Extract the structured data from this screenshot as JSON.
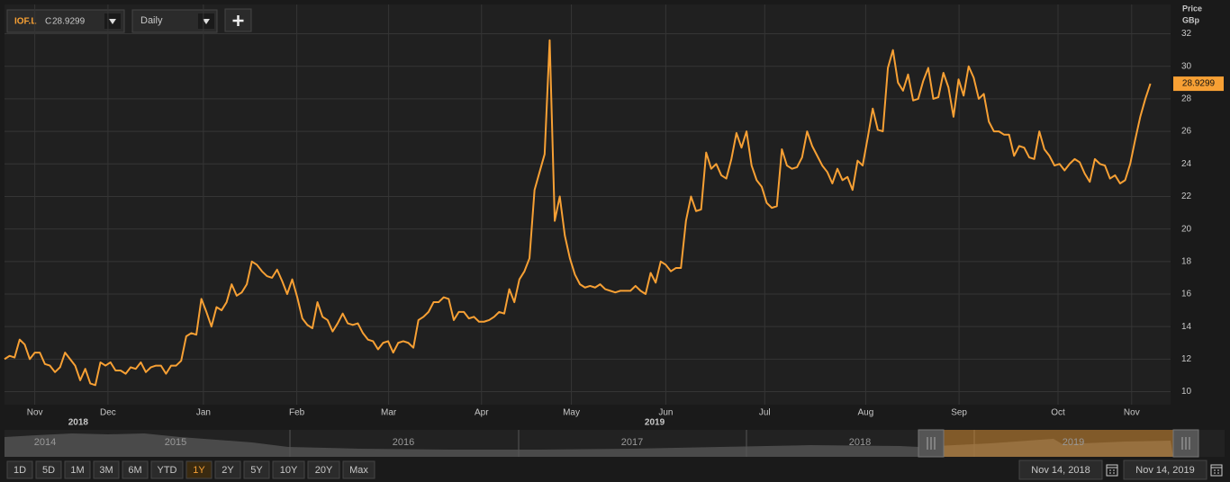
{
  "toolbar": {
    "ticker": "IOF.L",
    "close_prefix": "C",
    "interval": "Daily"
  },
  "chart_data": {
    "type": "line",
    "y_label": "Price",
    "y_unit": "GBp",
    "color": "#f7a034",
    "last_price": 28.9299,
    "values": [
      12.0,
      12.2,
      12.1,
      13.2,
      12.9,
      12.0,
      12.4,
      12.4,
      11.7,
      11.6,
      11.2,
      11.5,
      12.4,
      12.0,
      11.6,
      10.7,
      11.4,
      10.5,
      10.4,
      11.8,
      11.6,
      11.8,
      11.3,
      11.3,
      11.1,
      11.5,
      11.4,
      11.8,
      11.2,
      11.5,
      11.6,
      11.6,
      11.1,
      11.6,
      11.6,
      11.9,
      13.4,
      13.6,
      13.5,
      15.7,
      14.9,
      14.0,
      15.2,
      15.0,
      15.5,
      16.6,
      15.9,
      16.1,
      16.6,
      18.0,
      17.8,
      17.4,
      17.1,
      17.0,
      17.5,
      16.8,
      16.0,
      16.9,
      15.8,
      14.5,
      14.1,
      13.9,
      15.5,
      14.6,
      14.4,
      13.7,
      14.2,
      14.8,
      14.2,
      14.1,
      14.2,
      13.6,
      13.2,
      13.1,
      12.6,
      13.0,
      13.1,
      12.4,
      13.0,
      13.1,
      13.0,
      12.7,
      14.4,
      14.6,
      14.9,
      15.5,
      15.5,
      15.8,
      15.7,
      14.4,
      14.9,
      14.9,
      14.5,
      14.6,
      14.3,
      14.3,
      14.4,
      14.6,
      14.9,
      14.8,
      16.3,
      15.5,
      16.9,
      17.4,
      18.2,
      22.4,
      23.5,
      24.6,
      31.6,
      20.5,
      22.0,
      19.6,
      18.2,
      17.2,
      16.6,
      16.4,
      16.5,
      16.4,
      16.6,
      16.3,
      16.2,
      16.1,
      16.2,
      16.2,
      16.2,
      16.5,
      16.2,
      16.0,
      17.3,
      16.7,
      18.0,
      17.8,
      17.4,
      17.6,
      17.6,
      20.5,
      22.0,
      21.1,
      21.2,
      24.7,
      23.7,
      24.0,
      23.3,
      23.1,
      24.3,
      25.9,
      25.0,
      26.0,
      23.9,
      23.0,
      22.6,
      21.6,
      21.3,
      21.4,
      24.9,
      23.9,
      23.7,
      23.8,
      24.4,
      26.0,
      25.1,
      24.5,
      23.9,
      23.5,
      22.8,
      23.7,
      23.0,
      23.2,
      22.4,
      24.2,
      23.9,
      25.6,
      27.4,
      26.1,
      26.0,
      29.9,
      31.0,
      29.0,
      28.5,
      29.5,
      27.9,
      28.0,
      29.1,
      29.9,
      28.0,
      28.1,
      29.6,
      28.7,
      26.9,
      29.2,
      28.2,
      30.0,
      29.3,
      28.0,
      28.3,
      26.6,
      26.0,
      26.0,
      25.8,
      25.8,
      24.5,
      25.1,
      25.0,
      24.4,
      24.3,
      26.0,
      24.9,
      24.5,
      23.9,
      24.0,
      23.6,
      24.0,
      24.3,
      24.1,
      23.4,
      22.9,
      24.3,
      24.0,
      23.9,
      23.1,
      23.3,
      22.8,
      23.0,
      24.0,
      25.5,
      26.9,
      28.0,
      28.9299
    ],
    "xlim": [
      0,
      231
    ],
    "xticks": [
      {
        "value": 6,
        "label": "Nov"
      },
      {
        "value": 20.5,
        "label": "Dec"
      },
      {
        "value": 39.4,
        "label": "Jan"
      },
      {
        "value": 57.9,
        "label": "Feb"
      },
      {
        "value": 76.1,
        "label": "Mar"
      },
      {
        "value": 94.5,
        "label": "Apr"
      },
      {
        "value": 112.3,
        "label": "May"
      },
      {
        "value": 131,
        "label": "Jun"
      },
      {
        "value": 150.6,
        "label": "Jul"
      },
      {
        "value": 170.6,
        "label": "Aug"
      },
      {
        "value": 189.1,
        "label": "Sep"
      },
      {
        "value": 208.7,
        "label": "Oct"
      },
      {
        "value": 223.3,
        "label": "Nov"
      }
    ],
    "year_labels": [
      {
        "value": 14.6,
        "label": "2018"
      },
      {
        "value": 128.8,
        "label": "2019"
      }
    ],
    "ylim": [
      9.2,
      33.8
    ],
    "yticks": [
      10,
      12,
      14,
      16,
      18,
      20,
      22,
      24,
      26,
      28,
      30,
      32
    ],
    "grid": true
  },
  "navigator": {
    "years": [
      "2014",
      "2015",
      "2016",
      "2017",
      "2018",
      "2019"
    ]
  },
  "range_buttons": [
    {
      "label": "1D"
    },
    {
      "label": "5D"
    },
    {
      "label": "1M"
    },
    {
      "label": "3M"
    },
    {
      "label": "6M"
    },
    {
      "label": "YTD"
    },
    {
      "label": "1Y",
      "selected": true
    },
    {
      "label": "2Y"
    },
    {
      "label": "5Y"
    },
    {
      "label": "10Y"
    },
    {
      "label": "20Y"
    },
    {
      "label": "Max"
    }
  ],
  "date_range": {
    "from": "Nov 14, 2018",
    "to": "Nov 14, 2019"
  }
}
